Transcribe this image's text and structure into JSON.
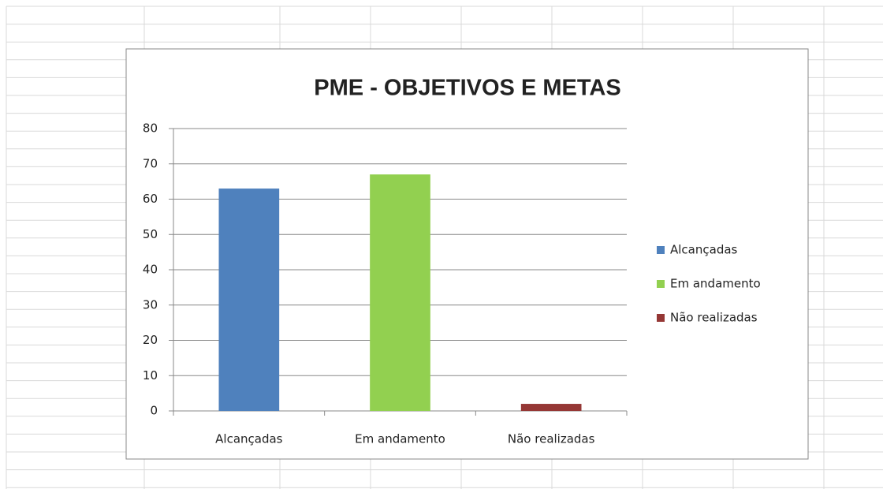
{
  "chart_data": {
    "type": "bar",
    "title": "PME - OBJETIVOS E METAS",
    "categories": [
      "Alcançadas",
      "Em andamento",
      "Não realizadas"
    ],
    "values": [
      63,
      67,
      2
    ],
    "colors": [
      "#4f81bd",
      "#92d050",
      "#953735"
    ],
    "ylim": [
      0,
      80
    ],
    "yticks": [
      0,
      10,
      20,
      30,
      40,
      50,
      60,
      70,
      80
    ],
    "grid": true,
    "legend": "right"
  }
}
